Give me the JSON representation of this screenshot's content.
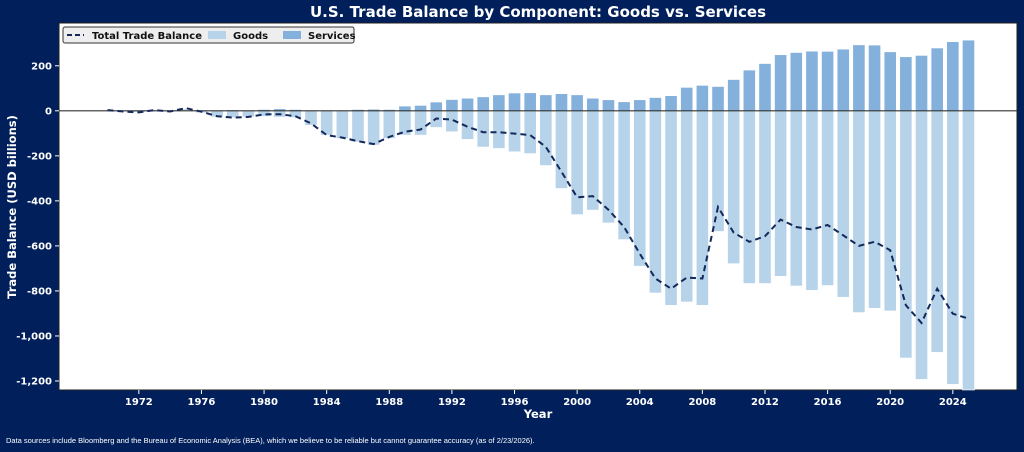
{
  "chart_data": {
    "type": "bar",
    "title": "U.S. Trade Balance by Component: Goods vs. Services",
    "xlabel": "Year",
    "ylabel": "Trade Balance (USD billions)",
    "xlim": [
      1966.9,
      2028.1
    ],
    "ylim": [
      -1240,
      390
    ],
    "xticks": [
      1972,
      1976,
      1980,
      1984,
      1988,
      1992,
      1996,
      2000,
      2004,
      2008,
      2012,
      2016,
      2020,
      2024
    ],
    "yticks": [
      200,
      0,
      -200,
      -400,
      -600,
      -800,
      -1000,
      -1200
    ],
    "ytick_labels": [
      "200",
      "0",
      "-200",
      "-400",
      "-600",
      "-800",
      "-1,000",
      "-1,200"
    ],
    "legend_placement": "top-left",
    "grid": false,
    "x": [
      1970,
      1971,
      1972,
      1973,
      1974,
      1975,
      1976,
      1977,
      1978,
      1979,
      1980,
      1981,
      1982,
      1983,
      1984,
      1985,
      1986,
      1987,
      1988,
      1989,
      1990,
      1991,
      1992,
      1993,
      1994,
      1995,
      1996,
      1997,
      1998,
      1999,
      2000,
      2001,
      2002,
      2003,
      2004,
      2005,
      2006,
      2007,
      2008,
      2009,
      2010,
      2011,
      2012,
      2013,
      2014,
      2015,
      2016,
      2017,
      2018,
      2019,
      2020,
      2021,
      2022,
      2023,
      2024,
      2025
    ],
    "series": [
      {
        "name": "Goods",
        "kind": "bar",
        "color": "#b6d3ea",
        "values": [
          2,
          -2,
          -6,
          1,
          -5,
          9,
          -9,
          -27,
          -30,
          -27,
          -25,
          -28,
          -30,
          -64,
          -108,
          -123,
          -138,
          -152,
          -123,
          -108,
          -108,
          -74,
          -93,
          -127,
          -161,
          -167,
          -182,
          -190,
          -243,
          -345,
          -461,
          -441,
          -498,
          -572,
          -690,
          -809,
          -864,
          -849,
          -864,
          -536,
          -679,
          -767,
          -767,
          -735,
          -778,
          -797,
          -776,
          -828,
          -896,
          -877,
          -889,
          -1098,
          -1193,
          -1073,
          -1215,
          -1260
        ]
      },
      {
        "name": "Services",
        "kind": "bar",
        "color": "#84b0dc",
        "values": [
          1,
          1,
          1,
          1,
          1,
          3,
          3,
          3,
          4,
          3,
          6,
          9,
          6,
          3,
          3,
          1,
          6,
          7,
          6,
          21,
          24,
          39,
          50,
          56,
          62,
          71,
          79,
          80,
          71,
          76,
          71,
          56,
          49,
          40,
          49,
          59,
          67,
          104,
          113,
          108,
          139,
          181,
          210,
          249,
          259,
          265,
          264,
          274,
          293,
          292,
          262,
          240,
          246,
          279,
          307,
          314
        ]
      },
      {
        "name": "Total Trade Balance",
        "kind": "line",
        "color": "#14285a",
        "values": [
          3,
          -3,
          -7,
          3,
          -3,
          12,
          -4,
          -24,
          -30,
          -27,
          -16,
          -15,
          -24,
          -56,
          -108,
          -119,
          -135,
          -148,
          -116,
          -93,
          -83,
          -34,
          -39,
          -71,
          -95,
          -95,
          -101,
          -108,
          -160,
          -271,
          -384,
          -379,
          -439,
          -516,
          -634,
          -745,
          -790,
          -741,
          -745,
          -427,
          -541,
          -582,
          -557,
          -483,
          -516,
          -527,
          -507,
          -553,
          -600,
          -582,
          -619,
          -864,
          -942,
          -790,
          -901,
          -923
        ]
      }
    ]
  },
  "footer": {
    "note": "Data sources include Bloomberg and the Bureau of Economic Analysis (BEA), which we believe to be reliable but cannot guarantee accuracy (as of 2/23/2026)."
  },
  "colors": {
    "background": "#001f5b",
    "plot_background": "#ffffff",
    "zero_line": "#333333"
  }
}
